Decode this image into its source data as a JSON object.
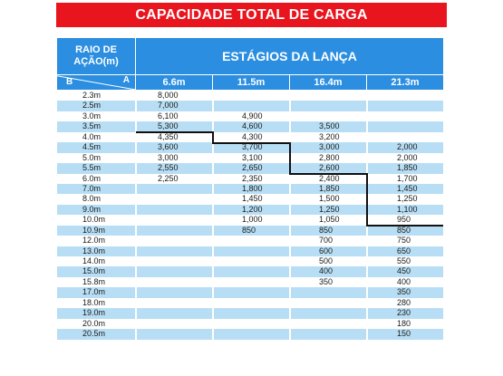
{
  "title": "CAPACIDADE TOTAL DE CARGA",
  "header": {
    "raio_line1": "RAIO DE",
    "raio_line2": "AÇÃO(m)",
    "estagios": "ESTÁGIOS DA LANÇA",
    "label_b": "B",
    "label_a": "A"
  },
  "columns": [
    "6.6m",
    "11.5m",
    "16.4m",
    "21.3m"
  ],
  "rows": [
    {
      "raio": "2.3m",
      "v": [
        "8,000",
        "",
        "",
        ""
      ]
    },
    {
      "raio": "2.5m",
      "v": [
        "7,000",
        "",
        "",
        ""
      ]
    },
    {
      "raio": "3.0m",
      "v": [
        "6,100",
        "4,900",
        "",
        ""
      ]
    },
    {
      "raio": "3.5m",
      "v": [
        "5,300",
        "4,600",
        "3,500",
        ""
      ]
    },
    {
      "raio": "4.0m",
      "v": [
        "4,350",
        "4,300",
        "3,200",
        ""
      ]
    },
    {
      "raio": "4.5m",
      "v": [
        "3,600",
        "3,700",
        "3,000",
        "2,000"
      ]
    },
    {
      "raio": "5.0m",
      "v": [
        "3,000",
        "3,100",
        "2,800",
        "2,000"
      ]
    },
    {
      "raio": "5.5m",
      "v": [
        "2,550",
        "2,650",
        "2,600",
        "1,850"
      ]
    },
    {
      "raio": "6.0m",
      "v": [
        "2,250",
        "2,350",
        "2,400",
        "1,700"
      ]
    },
    {
      "raio": "7.0m",
      "v": [
        "",
        "1,800",
        "1,850",
        "1,450"
      ]
    },
    {
      "raio": "8.0m",
      "v": [
        "",
        "1,450",
        "1,500",
        "1,250"
      ]
    },
    {
      "raio": "9.0m",
      "v": [
        "",
        "1,200",
        "1,250",
        "1,100"
      ]
    },
    {
      "raio": "10.0m",
      "v": [
        "",
        "1,000",
        "1,050",
        "950"
      ]
    },
    {
      "raio": "10.9m",
      "v": [
        "",
        "850",
        "850",
        "850"
      ]
    },
    {
      "raio": "12.0m",
      "v": [
        "",
        "",
        "700",
        "750"
      ]
    },
    {
      "raio": "13.0m",
      "v": [
        "",
        "",
        "600",
        "650"
      ]
    },
    {
      "raio": "14.0m",
      "v": [
        "",
        "",
        "500",
        "550"
      ]
    },
    {
      "raio": "15.0m",
      "v": [
        "",
        "",
        "400",
        "450"
      ]
    },
    {
      "raio": "15.8m",
      "v": [
        "",
        "",
        "350",
        "400"
      ]
    },
    {
      "raio": "17.0m",
      "v": [
        "",
        "",
        "",
        "350"
      ]
    },
    {
      "raio": "18.0m",
      "v": [
        "",
        "",
        "",
        "280"
      ]
    },
    {
      "raio": "19.0m",
      "v": [
        "",
        "",
        "",
        "230"
      ]
    },
    {
      "raio": "20.0m",
      "v": [
        "",
        "",
        "",
        "180"
      ]
    },
    {
      "raio": "20.5m",
      "v": [
        "",
        "",
        "",
        "150"
      ]
    }
  ],
  "colors": {
    "title_bg": "#e8141e",
    "header_bg": "#2b8ee0",
    "row_light": "#b7def4"
  }
}
